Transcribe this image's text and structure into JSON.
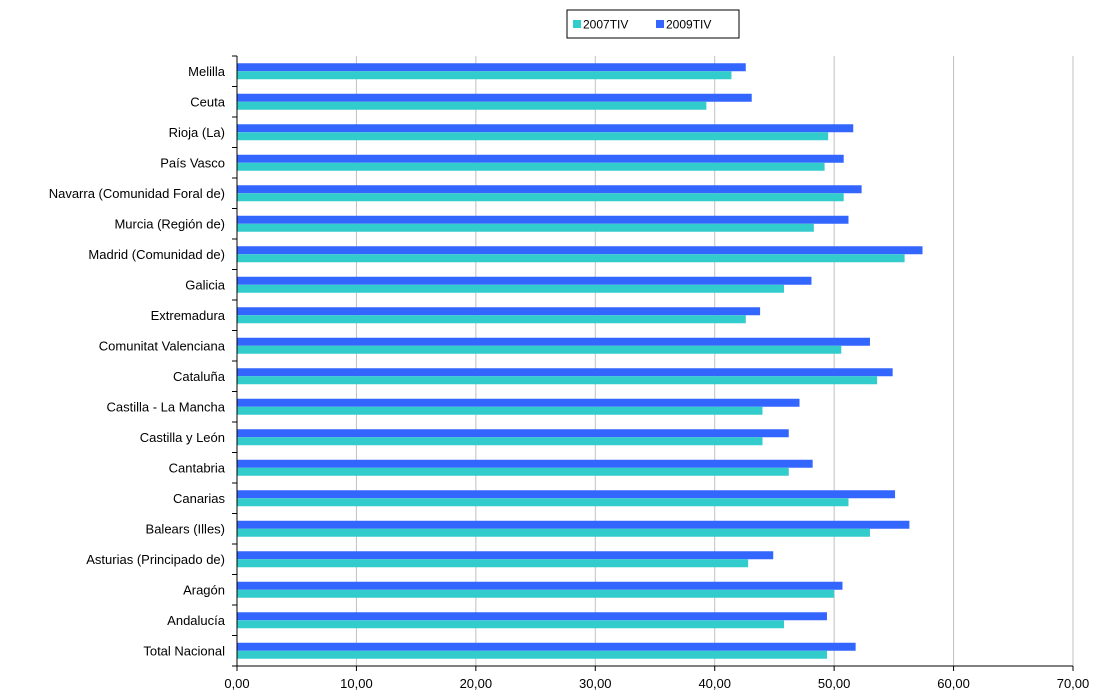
{
  "chart_data": {
    "type": "bar",
    "orientation": "horizontal",
    "categories": [
      "Total Nacional",
      "Andalucía",
      "Aragón",
      "Asturias (Principado de)",
      "Balears (Illes)",
      "Canarias",
      "Cantabria",
      "Castilla y León",
      "Castilla - La Mancha",
      "Cataluña",
      "Comunitat Valenciana",
      "Extremadura",
      "Galicia",
      "Madrid (Comunidad de)",
      "Murcia (Región de)",
      "Navarra (Comunidad Foral de)",
      "País Vasco",
      "Rioja (La)",
      "Ceuta",
      "Melilla"
    ],
    "series": [
      {
        "name": "2007TIV",
        "color": "#33CCCC",
        "values": [
          49.4,
          45.8,
          50.0,
          42.8,
          53.0,
          51.2,
          46.2,
          44.0,
          44.0,
          53.6,
          50.6,
          42.6,
          45.8,
          55.9,
          48.3,
          50.8,
          49.2,
          49.5,
          39.3,
          41.4
        ]
      },
      {
        "name": "2009TIV",
        "color": "#3366FF",
        "values": [
          51.8,
          49.4,
          50.7,
          44.9,
          56.3,
          55.1,
          48.2,
          46.2,
          47.1,
          54.9,
          53.0,
          43.8,
          48.1,
          57.4,
          51.2,
          52.3,
          50.8,
          51.6,
          43.1,
          42.6
        ]
      }
    ],
    "xlim": [
      0,
      70
    ],
    "x_ticks": [
      "0,00",
      "10,00",
      "20,00",
      "30,00",
      "40,00",
      "50,00",
      "60,00",
      "70,00"
    ],
    "grid": "vertical",
    "legend": {
      "placement": "top-center"
    },
    "title": "",
    "xlabel": "",
    "ylabel": ""
  }
}
